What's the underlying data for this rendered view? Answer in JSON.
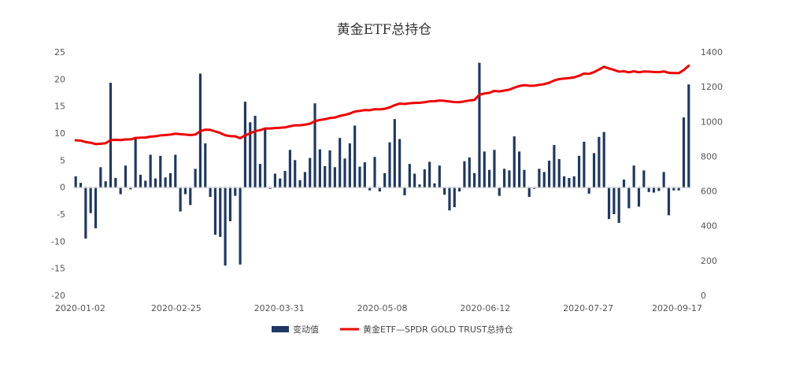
{
  "chart_data": {
    "type": "bar+line",
    "title": "黄金ETF总持仓",
    "x_tick_labels": [
      "2020-01-02",
      "2020-02-25",
      "2020-03-31",
      "2020-05-08",
      "2020-06-12",
      "2020-07-27",
      "2020-09-17"
    ],
    "y_left": {
      "min": -20,
      "max": 25,
      "ticks": [
        "25",
        "20",
        "15",
        "10",
        "5",
        "0",
        "-5",
        "-10",
        "-15",
        "-20"
      ]
    },
    "y_right": {
      "min": 0,
      "max": 1400,
      "ticks": [
        "1400",
        "1200",
        "1000",
        "800",
        "600",
        "400",
        "200",
        "0"
      ]
    },
    "legend": {
      "position": "bottom",
      "bar_label": "变动值",
      "line_label": "黄金ETF—SPDR GOLD TRUST总持仓"
    },
    "colors": {
      "bar": "#1f3864",
      "line": "#ee0000"
    },
    "bar_values": [
      2.0,
      0.8,
      -9.5,
      -4.8,
      -7.6,
      3.7,
      1.1,
      19.3,
      1.7,
      -1.3,
      4.0,
      -0.4,
      9.3,
      2.3,
      1.2,
      6.0,
      1.6,
      5.8,
      1.8,
      2.6,
      6.0,
      -4.5,
      -1.3,
      -3.3,
      3.4,
      21.0,
      8.1,
      -1.8,
      -8.8,
      -9.2,
      -14.5,
      -6.3,
      -1.6,
      -14.3,
      15.8,
      12.0,
      13.2,
      4.3,
      10.9,
      -0.3,
      2.5,
      1.6,
      3.0,
      6.9,
      5.0,
      1.3,
      2.8,
      5.4,
      15.5,
      7.0,
      3.9,
      6.8,
      3.7,
      9.1,
      5.3,
      8.1,
      11.4,
      3.8,
      4.6,
      -0.6,
      5.6,
      -0.8,
      2.6,
      8.3,
      12.6,
      8.9,
      -1.5,
      4.3,
      2.5,
      0.5,
      3.3,
      4.7,
      0.7,
      4.0,
      -1.4,
      -4.3,
      -3.7,
      -0.8,
      4.8,
      5.5,
      2.6,
      23.0,
      6.6,
      3.2,
      6.9,
      -1.6,
      3.4,
      3.1,
      9.4,
      6.6,
      3.2,
      -1.8,
      -0.3,
      3.4,
      2.8,
      4.9,
      7.8,
      5.2,
      2.0,
      1.7,
      2.0,
      5.8,
      8.4,
      -1.2,
      6.3,
      9.3,
      10.2,
      -5.9,
      -5.0,
      -6.6,
      1.4,
      -3.9,
      4.0,
      -3.6,
      3.1,
      -0.9,
      -1.0,
      -0.7,
      2.8,
      -5.2,
      -0.6,
      -0.6,
      12.9,
      19.0
    ],
    "line_values": [
      892,
      890,
      882,
      878,
      870,
      872,
      875,
      893,
      895,
      893,
      897,
      897,
      905,
      907,
      908,
      913,
      915,
      920,
      922,
      925,
      930,
      927,
      925,
      922,
      925,
      945,
      953,
      952,
      943,
      934,
      921,
      916,
      915,
      904,
      920,
      932,
      945,
      950,
      960,
      960,
      962,
      964,
      966,
      973,
      978,
      978,
      982,
      987,
      1002,
      1009,
      1013,
      1020,
      1023,
      1032,
      1038,
      1046,
      1057,
      1061,
      1066,
      1065,
      1071,
      1070,
      1073,
      1081,
      1094,
      1103,
      1101,
      1105,
      1107,
      1108,
      1111,
      1116,
      1117,
      1121,
      1119,
      1115,
      1112,
      1111,
      1116,
      1121,
      1124,
      1154,
      1161,
      1165,
      1176,
      1173,
      1178,
      1183,
      1195,
      1204,
      1209,
      1206,
      1206,
      1211,
      1215,
      1223,
      1236,
      1244,
      1247,
      1250,
      1254,
      1263,
      1276,
      1274,
      1284,
      1299,
      1315,
      1305,
      1297,
      1287,
      1289,
      1283,
      1289,
      1283,
      1288,
      1287,
      1285,
      1284,
      1288,
      1280,
      1279,
      1278,
      1296,
      1321
    ]
  }
}
